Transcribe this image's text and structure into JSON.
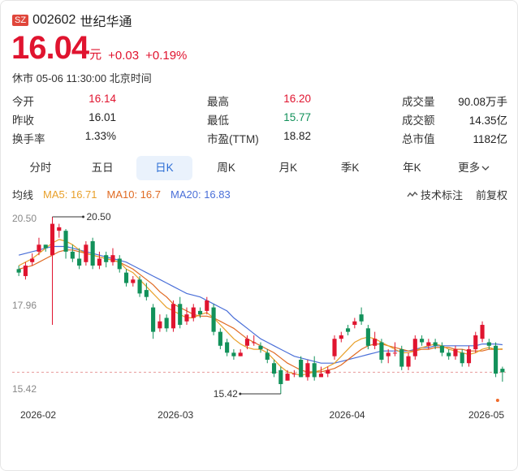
{
  "header": {
    "market": "SZ",
    "code": "002602",
    "name": "世纪华通"
  },
  "quote": {
    "price": "16.04",
    "unit": "元",
    "change": "+0.03",
    "change_pct": "+0.19%",
    "status": "休市 05-06 11:30:00 北京时间"
  },
  "stats": [
    [
      {
        "label": "今开",
        "value": "16.14",
        "color": "red"
      },
      {
        "label": "最高",
        "value": "16.20",
        "color": "red"
      },
      {
        "label": "成交量",
        "value": "90.08万手",
        "color": "plain"
      }
    ],
    [
      {
        "label": "昨收",
        "value": "16.01",
        "color": "plain"
      },
      {
        "label": "最低",
        "value": "15.77",
        "color": "green"
      },
      {
        "label": "成交额",
        "value": "14.35亿",
        "color": "plain"
      }
    ],
    [
      {
        "label": "换手率",
        "value": "1.33%",
        "color": "plain"
      },
      {
        "label": "市盈(TTM)",
        "value": "18.82",
        "color": "plain"
      },
      {
        "label": "总市值",
        "value": "1182亿",
        "color": "plain"
      }
    ]
  ],
  "tabs": [
    "分时",
    "五日",
    "日K",
    "周K",
    "月K",
    "季K",
    "年K",
    "更多"
  ],
  "active_tab": "日K",
  "legend": {
    "title": "均线",
    "ma5": "MA5: 16.71",
    "ma10": "MA10: 16.7",
    "ma20": "MA20: 16.83",
    "tech": "技术标注",
    "adjust": "前复权"
  },
  "colors": {
    "up": "#e0142f",
    "down": "#12915a",
    "ma5": "#e8a02a",
    "ma10": "#e06a22",
    "ma20": "#4a6fd8",
    "accent": "#2c6ed5"
  },
  "chart_data": {
    "type": "candlestick",
    "y_ticks": [
      "20.50",
      "17.96",
      "15.42"
    ],
    "y_range": [
      15.42,
      20.5
    ],
    "x_labels": [
      "2026-02",
      "2026-03",
      "2026-04",
      "2026-05"
    ],
    "max_label": "20.50",
    "min_label": "15.42",
    "last_close": 16.04,
    "candles": [
      [
        19.0,
        18.9,
        19.1,
        18.8
      ],
      [
        18.8,
        19.1,
        19.2,
        18.7
      ],
      [
        19.2,
        19.3,
        19.45,
        19.1
      ],
      [
        19.5,
        19.7,
        19.9,
        19.4
      ],
      [
        19.7,
        19.6,
        19.7,
        19.5
      ],
      [
        19.4,
        20.3,
        20.5,
        17.4
      ],
      [
        20.1,
        20.2,
        20.3,
        19.9
      ],
      [
        20.1,
        19.5,
        20.15,
        19.3
      ],
      [
        19.5,
        19.3,
        19.7,
        19.2
      ],
      [
        19.3,
        19.1,
        19.6,
        19.0
      ],
      [
        19.2,
        19.7,
        19.8,
        19.1
      ],
      [
        19.8,
        19.1,
        19.9,
        19.0
      ],
      [
        19.1,
        19.3,
        19.5,
        19.0
      ],
      [
        19.4,
        19.2,
        19.5,
        19.05
      ],
      [
        19.2,
        19.4,
        19.6,
        19.1
      ],
      [
        19.3,
        19.0,
        19.4,
        18.9
      ],
      [
        18.9,
        18.6,
        19.0,
        18.5
      ],
      [
        18.6,
        18.7,
        18.8,
        18.5
      ],
      [
        18.7,
        18.3,
        18.8,
        18.2
      ],
      [
        18.4,
        18.2,
        18.6,
        18.1
      ],
      [
        17.9,
        17.2,
        18.0,
        17.0
      ],
      [
        17.3,
        17.5,
        17.7,
        17.2
      ],
      [
        17.6,
        17.3,
        17.7,
        17.2
      ],
      [
        17.3,
        18.0,
        18.1,
        17.2
      ],
      [
        18.0,
        17.4,
        18.2,
        17.3
      ],
      [
        17.5,
        17.7,
        17.9,
        17.4
      ],
      [
        17.6,
        17.9,
        18.0,
        17.5
      ],
      [
        17.8,
        17.7,
        17.9,
        17.6
      ],
      [
        17.8,
        18.1,
        18.2,
        17.7
      ],
      [
        17.9,
        17.2,
        18.0,
        17.1
      ],
      [
        17.2,
        16.8,
        17.3,
        16.7
      ],
      [
        16.9,
        16.6,
        17.0,
        16.5
      ],
      [
        16.6,
        16.5,
        16.7,
        16.4
      ],
      [
        16.5,
        16.6,
        16.7,
        16.5
      ],
      [
        16.8,
        17.0,
        17.1,
        16.7
      ],
      [
        16.9,
        16.9,
        17.1,
        16.8
      ],
      [
        16.8,
        16.7,
        16.9,
        16.6
      ],
      [
        16.6,
        16.4,
        16.7,
        16.3
      ],
      [
        16.3,
        16.0,
        16.4,
        15.9
      ],
      [
        16.1,
        15.7,
        16.2,
        15.42
      ],
      [
        15.8,
        16.0,
        16.1,
        15.8
      ],
      [
        16.0,
        16.0,
        16.1,
        15.9
      ],
      [
        16.4,
        15.9,
        16.5,
        15.9
      ],
      [
        15.9,
        16.3,
        16.4,
        15.8
      ],
      [
        16.3,
        15.9,
        16.5,
        15.8
      ],
      [
        15.9,
        16.0,
        16.2,
        15.9
      ],
      [
        16.0,
        16.1,
        16.2,
        15.9
      ],
      [
        16.5,
        17.0,
        17.1,
        16.4
      ],
      [
        17.0,
        17.1,
        17.2,
        16.9
      ],
      [
        17.3,
        17.2,
        17.4,
        17.1
      ],
      [
        17.4,
        17.5,
        17.6,
        17.3
      ],
      [
        17.7,
        17.5,
        17.9,
        17.4
      ],
      [
        17.3,
        16.8,
        17.4,
        16.7
      ],
      [
        16.8,
        17.0,
        17.2,
        16.7
      ],
      [
        16.9,
        16.4,
        17.0,
        16.3
      ],
      [
        16.5,
        16.6,
        16.7,
        16.3
      ],
      [
        16.6,
        16.6,
        16.9,
        16.5
      ],
      [
        16.7,
        16.2,
        16.8,
        16.1
      ],
      [
        16.2,
        16.5,
        16.6,
        16.1
      ],
      [
        16.5,
        17.0,
        17.1,
        16.4
      ],
      [
        17.0,
        16.9,
        17.1,
        16.8
      ],
      [
        16.8,
        16.9,
        17.0,
        16.7
      ],
      [
        16.9,
        16.8,
        17.0,
        16.7
      ],
      [
        16.8,
        16.6,
        16.9,
        16.5
      ],
      [
        16.6,
        16.5,
        16.7,
        16.4
      ],
      [
        16.5,
        16.7,
        16.8,
        16.4
      ],
      [
        16.6,
        16.3,
        16.7,
        16.2
      ],
      [
        16.3,
        16.7,
        16.8,
        16.2
      ],
      [
        16.7,
        17.1,
        17.2,
        16.6
      ],
      [
        17.0,
        17.4,
        17.5,
        16.9
      ],
      [
        16.9,
        16.8,
        17.0,
        16.7
      ],
      [
        16.8,
        16.0,
        16.9,
        15.9
      ],
      [
        16.14,
        16.04,
        16.2,
        15.77
      ]
    ],
    "ma5": [
      19.1,
      19.2,
      19.3,
      19.45,
      19.6,
      19.75,
      19.85,
      19.8,
      19.7,
      19.55,
      19.45,
      19.4,
      19.35,
      19.3,
      19.25,
      19.2,
      19.0,
      18.9,
      18.7,
      18.5,
      18.3,
      18.1,
      17.9,
      17.8,
      17.7,
      17.6,
      17.6,
      17.7,
      17.75,
      17.6,
      17.4,
      17.2,
      17.0,
      16.85,
      16.75,
      16.7,
      16.7,
      16.6,
      16.4,
      16.2,
      16.05,
      16.0,
      15.95,
      16.0,
      16.05,
      16.1,
      16.2,
      16.3,
      16.5,
      16.7,
      16.9,
      17.0,
      17.05,
      17.0,
      16.9,
      16.8,
      16.7,
      16.6,
      16.6,
      16.65,
      16.75,
      16.8,
      16.85,
      16.8,
      16.7,
      16.65,
      16.6,
      16.55,
      16.6,
      16.7,
      16.75,
      16.7,
      16.71
    ],
    "ma10": [
      19.0,
      19.05,
      19.1,
      19.2,
      19.3,
      19.4,
      19.5,
      19.55,
      19.55,
      19.5,
      19.45,
      19.4,
      19.35,
      19.3,
      19.25,
      19.2,
      19.1,
      19.0,
      18.85,
      18.7,
      18.55,
      18.35,
      18.2,
      18.0,
      17.9,
      17.8,
      17.7,
      17.65,
      17.65,
      17.6,
      17.5,
      17.4,
      17.3,
      17.15,
      17.0,
      16.9,
      16.8,
      16.7,
      16.6,
      16.45,
      16.3,
      16.2,
      16.1,
      16.05,
      16.05,
      16.05,
      16.1,
      16.15,
      16.25,
      16.4,
      16.55,
      16.7,
      16.8,
      16.85,
      16.85,
      16.8,
      16.75,
      16.7,
      16.65,
      16.65,
      16.7,
      16.7,
      16.75,
      16.75,
      16.75,
      16.7,
      16.7,
      16.65,
      16.65,
      16.65,
      16.7,
      16.7,
      16.7
    ],
    "ma20": [
      19.4,
      19.45,
      19.5,
      19.55,
      19.6,
      19.65,
      19.65,
      19.65,
      19.6,
      19.55,
      19.5,
      19.45,
      19.4,
      19.35,
      19.3,
      19.25,
      19.2,
      19.1,
      19.0,
      18.9,
      18.8,
      18.7,
      18.6,
      18.5,
      18.4,
      18.3,
      18.25,
      18.2,
      18.1,
      18.0,
      17.9,
      17.8,
      17.6,
      17.45,
      17.3,
      17.15,
      17.0,
      16.9,
      16.8,
      16.7,
      16.6,
      16.5,
      16.45,
      16.4,
      16.35,
      16.3,
      16.3,
      16.3,
      16.35,
      16.4,
      16.45,
      16.5,
      16.55,
      16.6,
      16.65,
      16.65,
      16.65,
      16.65,
      16.65,
      16.7,
      16.75,
      16.75,
      16.8,
      16.8,
      16.8,
      16.8,
      16.8,
      16.8,
      16.8,
      16.85,
      16.85,
      16.85,
      16.83
    ]
  }
}
